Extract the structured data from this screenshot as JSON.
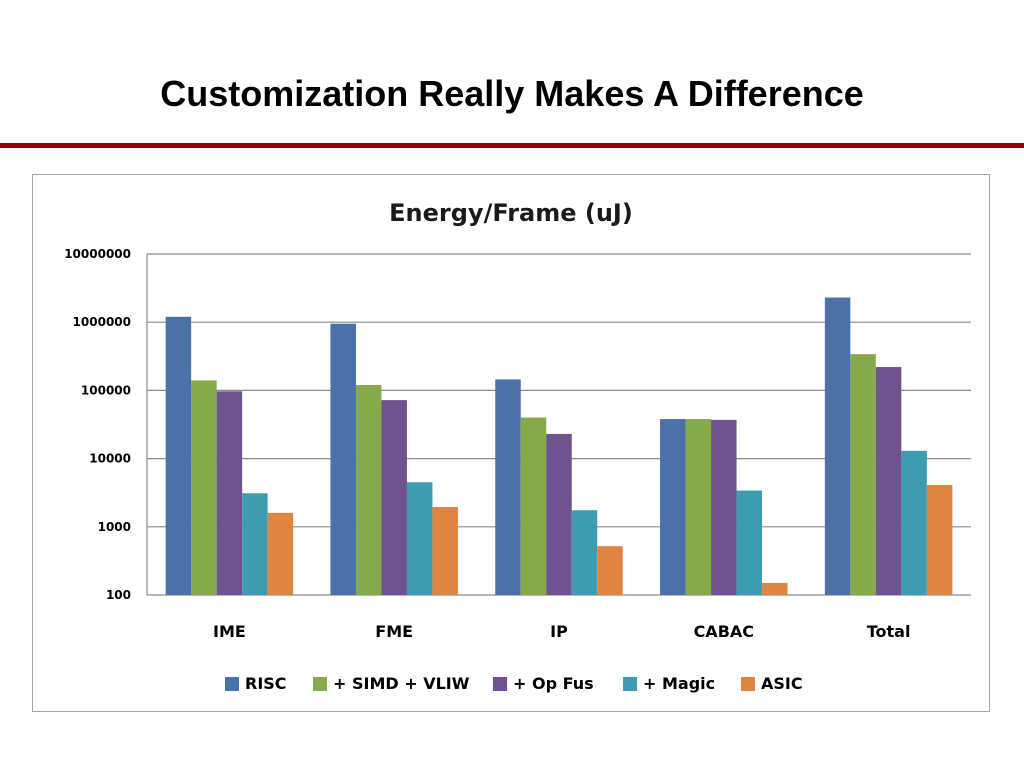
{
  "slide": {
    "title": "Customization Really Makes A Difference",
    "accent_color": "#8b0000"
  },
  "chart_data": {
    "type": "bar",
    "title": "Energy/Frame (uJ)",
    "xlabel": "",
    "ylabel": "",
    "y_scale": "log",
    "ylim": [
      100,
      10000000
    ],
    "y_ticks": [
      "10000000",
      "1000000",
      "100000",
      "10000",
      "1000",
      "100"
    ],
    "y_tick_values": [
      10000000,
      1000000,
      100000,
      10000,
      1000,
      100
    ],
    "grid": true,
    "legend_position": "bottom",
    "categories": [
      "IME",
      "FME",
      "IP",
      "CABAC",
      "Total"
    ],
    "series": [
      {
        "name": "RISC",
        "color": "#4a72a8",
        "values": [
          1200000,
          950000,
          145000,
          38000,
          2300000
        ]
      },
      {
        "name": "+ SIMD + VLIW",
        "color": "#86a94a",
        "values": [
          140000,
          120000,
          40000,
          38000,
          340000
        ]
      },
      {
        "name": "+ Op Fus",
        "color": "#6e5390",
        "values": [
          97000,
          72000,
          23000,
          37000,
          220000
        ]
      },
      {
        "name": "+ Magic",
        "color": "#3e9cb0",
        "values": [
          3100,
          4500,
          1750,
          3400,
          13000
        ]
      },
      {
        "name": "ASIC",
        "color": "#de8641",
        "values": [
          1600,
          1950,
          520,
          150,
          4100
        ]
      }
    ]
  }
}
